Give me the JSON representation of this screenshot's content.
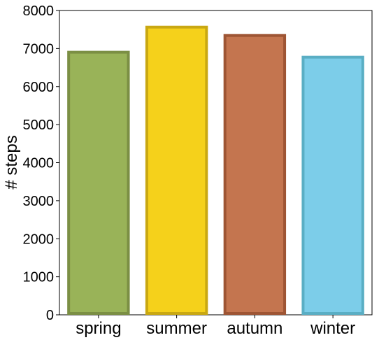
{
  "chart_data": {
    "type": "bar",
    "categories": [
      "spring",
      "summer",
      "autumn",
      "winter"
    ],
    "values": [
      6940,
      7600,
      7380,
      6810
    ],
    "fill_colors": [
      "#99b358",
      "#f5d11b",
      "#c4754f",
      "#7ccde9"
    ],
    "edge_colors": [
      "#7b8f44",
      "#c9a812",
      "#9e5534",
      "#5aaec4"
    ],
    "title": "",
    "xlabel": "",
    "ylabel": "# steps",
    "ylim": [
      0,
      8000
    ],
    "yticks": [
      0,
      1000,
      2000,
      3000,
      4000,
      5000,
      6000,
      7000,
      8000
    ],
    "grid": false
  }
}
